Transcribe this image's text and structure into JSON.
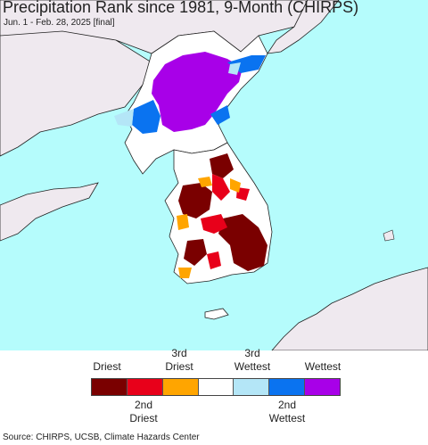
{
  "title": "Precipitation Rank since 1981, 9-Month (CHIRPS)",
  "subtitle": "Jun. 1 - Feb. 28, 2025 [final]",
  "legend": {
    "top_labels": [
      "Driest",
      "3rd\nDriest",
      "3rd\nWettest",
      "Wettest"
    ],
    "bottom_labels": [
      "2nd\nDriest",
      "2nd\nWettest"
    ],
    "swatches": [
      {
        "category": "driest",
        "color": "#7a0000"
      },
      {
        "category": "2nd-driest",
        "color": "#e8001a"
      },
      {
        "category": "3rd-driest",
        "color": "#ffa500"
      },
      {
        "category": "normal",
        "color": "#ffffff"
      },
      {
        "category": "3rd-wettest",
        "color": "#b4e6f7"
      },
      {
        "category": "2nd-wettest",
        "color": "#0a73f0"
      },
      {
        "category": "wettest",
        "color": "#a800e8"
      }
    ]
  },
  "colors": {
    "ocean": "#b5fcfc",
    "land_outside": "#efe9ef",
    "land_inside": "#ffffff",
    "border": "#222222"
  },
  "source": "Source: CHIRPS, UCSB, Climate Hazards Center"
}
